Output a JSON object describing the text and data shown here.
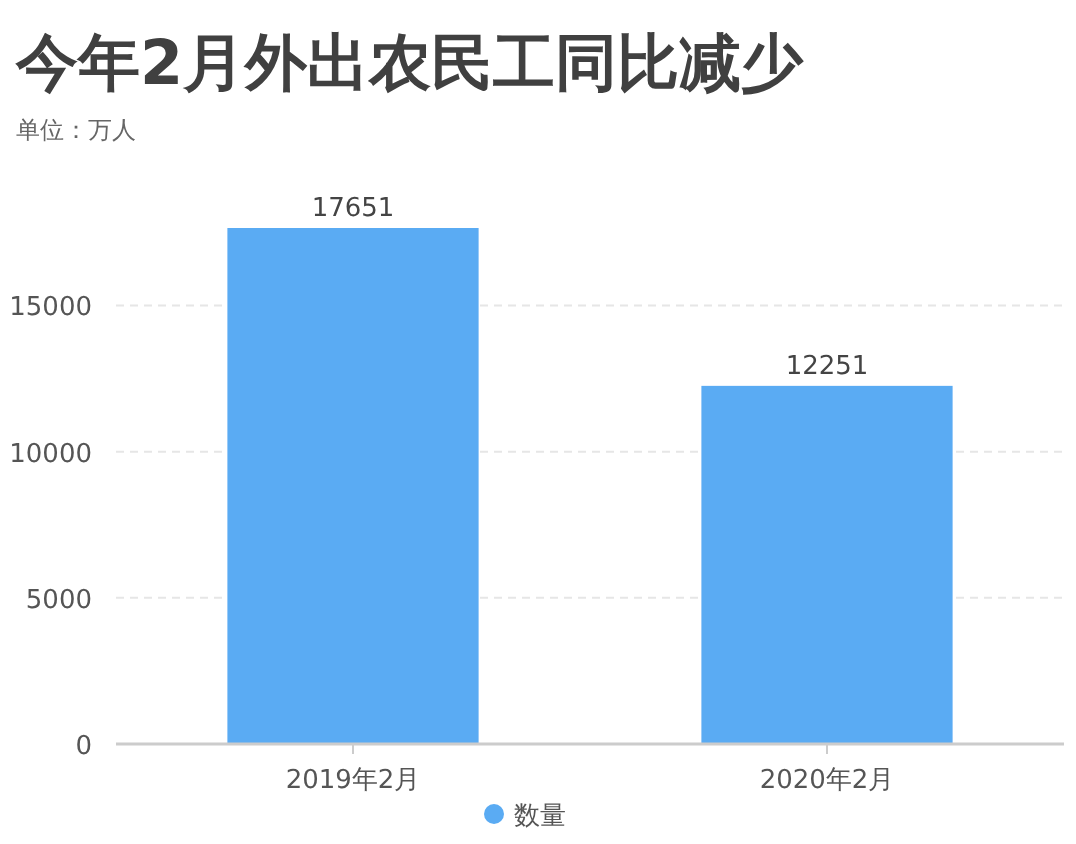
{
  "chart_data": {
    "type": "bar",
    "title": "今年2月外出农民工同比减少",
    "subtitle": "单位：万人",
    "categories": [
      "2019年2月",
      "2020年2月"
    ],
    "series": [
      {
        "name": "数量",
        "color": "#5aabf3",
        "values": [
          17651,
          12251
        ]
      }
    ],
    "ylim": [
      0,
      17651
    ],
    "yticks": [
      0,
      5000,
      10000,
      15000
    ],
    "grid": "y",
    "data_labels": true,
    "legend": "bottom"
  }
}
